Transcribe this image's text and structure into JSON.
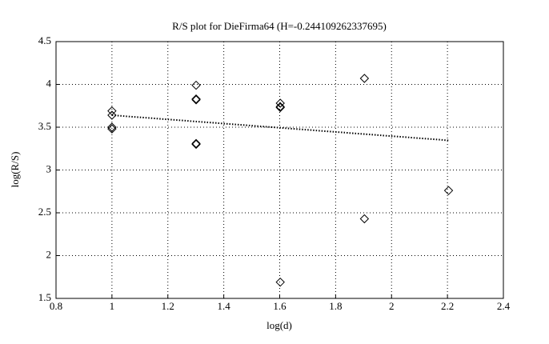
{
  "chart_data": {
    "type": "scatter",
    "title": "R/S plot for DieFirma64 (H=-0.244109262337695)",
    "x_label": "log(d)",
    "y_label": "log(R/S)",
    "series": [
      {
        "color": "#000000",
        "marker": "diamond",
        "x": [
          1,
          1,
          1,
          1,
          1.301,
          1.301,
          1.301,
          1.301,
          1.301,
          1.602,
          1.602,
          1.602,
          1.602,
          1.903,
          1.903,
          2.204
        ],
        "values": [
          3.69,
          3.64,
          3.5,
          3.48,
          3.99,
          3.83,
          3.82,
          3.31,
          3.3,
          3.78,
          3.74,
          3.73,
          1.69,
          4.07,
          2.43,
          2.76
        ]
      },
      {
        "color": "#000000",
        "line": "dotted",
        "x": [
          1,
          2.204
        ],
        "values": [
          3.64,
          3.346
        ]
      }
    ],
    "xlim": [
      0.8,
      2.4
    ],
    "xticks": [
      0.8,
      1,
      1.2,
      1.4,
      1.6,
      1.8,
      2,
      2.2,
      2.4
    ],
    "ylim": [
      1.5,
      4.5
    ],
    "yticks": [
      1.5,
      2,
      2.5,
      3,
      3.5,
      4,
      4.5
    ],
    "grid": true
  }
}
